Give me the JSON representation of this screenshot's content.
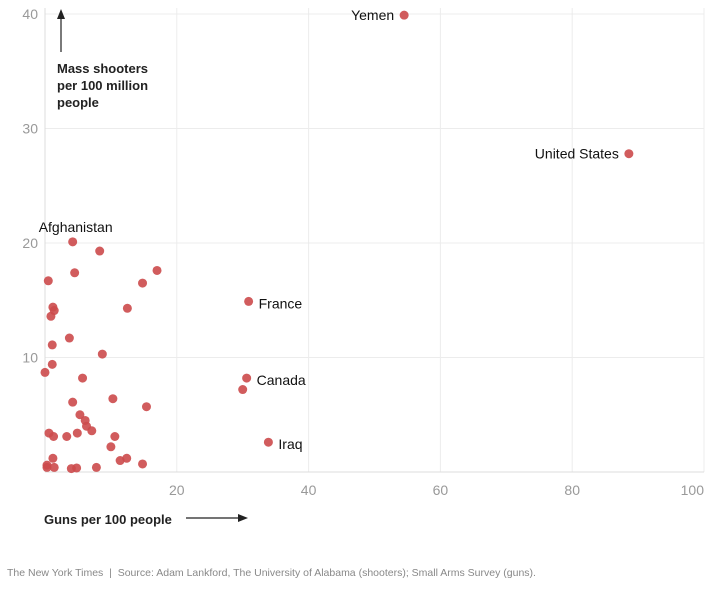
{
  "chart_data": {
    "type": "scatter",
    "xlabel": "Guns per 100 people",
    "ylabel": [
      "Mass shooters",
      "per 100 million",
      "people"
    ],
    "xlim": [
      0,
      100
    ],
    "ylim": [
      0,
      40
    ],
    "xticks": [
      20,
      40,
      60,
      80,
      100
    ],
    "yticks": [
      10,
      20,
      30,
      40
    ],
    "grid": true,
    "color": "#cc4a4b",
    "points": [
      {
        "x": 54.5,
        "y": 39.9,
        "label": "Yemen",
        "pos": "left"
      },
      {
        "x": 88.6,
        "y": 27.8,
        "label": "United States",
        "pos": "left"
      },
      {
        "x": 4.2,
        "y": 20.1,
        "label": "Afghanistan",
        "pos": "above"
      },
      {
        "x": 30.9,
        "y": 14.9,
        "label": "France",
        "pos": "right"
      },
      {
        "x": 30.6,
        "y": 8.2,
        "label": "Canada",
        "pos": "right"
      },
      {
        "x": 33.9,
        "y": 2.6,
        "label": "Iraq",
        "pos": "right"
      },
      {
        "x": 30.0,
        "y": 7.2
      },
      {
        "x": 8.3,
        "y": 19.3
      },
      {
        "x": 4.5,
        "y": 17.4
      },
      {
        "x": 17.0,
        "y": 17.6
      },
      {
        "x": 0.5,
        "y": 16.7
      },
      {
        "x": 14.8,
        "y": 16.5
      },
      {
        "x": 1.2,
        "y": 14.4
      },
      {
        "x": 1.4,
        "y": 14.1
      },
      {
        "x": 0.9,
        "y": 13.6
      },
      {
        "x": 12.5,
        "y": 14.3
      },
      {
        "x": 3.7,
        "y": 11.7
      },
      {
        "x": 1.1,
        "y": 11.1
      },
      {
        "x": 8.7,
        "y": 10.3
      },
      {
        "x": 1.1,
        "y": 9.4
      },
      {
        "x": 0.0,
        "y": 8.7
      },
      {
        "x": 5.7,
        "y": 8.2
      },
      {
        "x": 4.2,
        "y": 6.1
      },
      {
        "x": 10.3,
        "y": 6.4
      },
      {
        "x": 15.4,
        "y": 5.7
      },
      {
        "x": 5.3,
        "y": 5.0
      },
      {
        "x": 6.1,
        "y": 4.5
      },
      {
        "x": 6.3,
        "y": 4.0
      },
      {
        "x": 7.1,
        "y": 3.6
      },
      {
        "x": 4.9,
        "y": 3.4
      },
      {
        "x": 0.6,
        "y": 3.4
      },
      {
        "x": 1.3,
        "y": 3.1
      },
      {
        "x": 3.3,
        "y": 3.1
      },
      {
        "x": 10.6,
        "y": 3.1
      },
      {
        "x": 10.0,
        "y": 2.2
      },
      {
        "x": 1.2,
        "y": 1.2
      },
      {
        "x": 0.3,
        "y": 0.6
      },
      {
        "x": 1.4,
        "y": 0.4
      },
      {
        "x": 4.0,
        "y": 0.3
      },
      {
        "x": 4.8,
        "y": 0.35
      },
      {
        "x": 7.8,
        "y": 0.4
      },
      {
        "x": 11.4,
        "y": 1.0
      },
      {
        "x": 12.4,
        "y": 1.2
      },
      {
        "x": 14.8,
        "y": 0.7
      },
      {
        "x": 0.3,
        "y": 0.4
      }
    ]
  },
  "footer": {
    "publisher": "The New York Times",
    "separator": "|",
    "source": "Source: Adam Lankford, The University of Alabama (shooters); Small Arms Survey (guns)."
  }
}
